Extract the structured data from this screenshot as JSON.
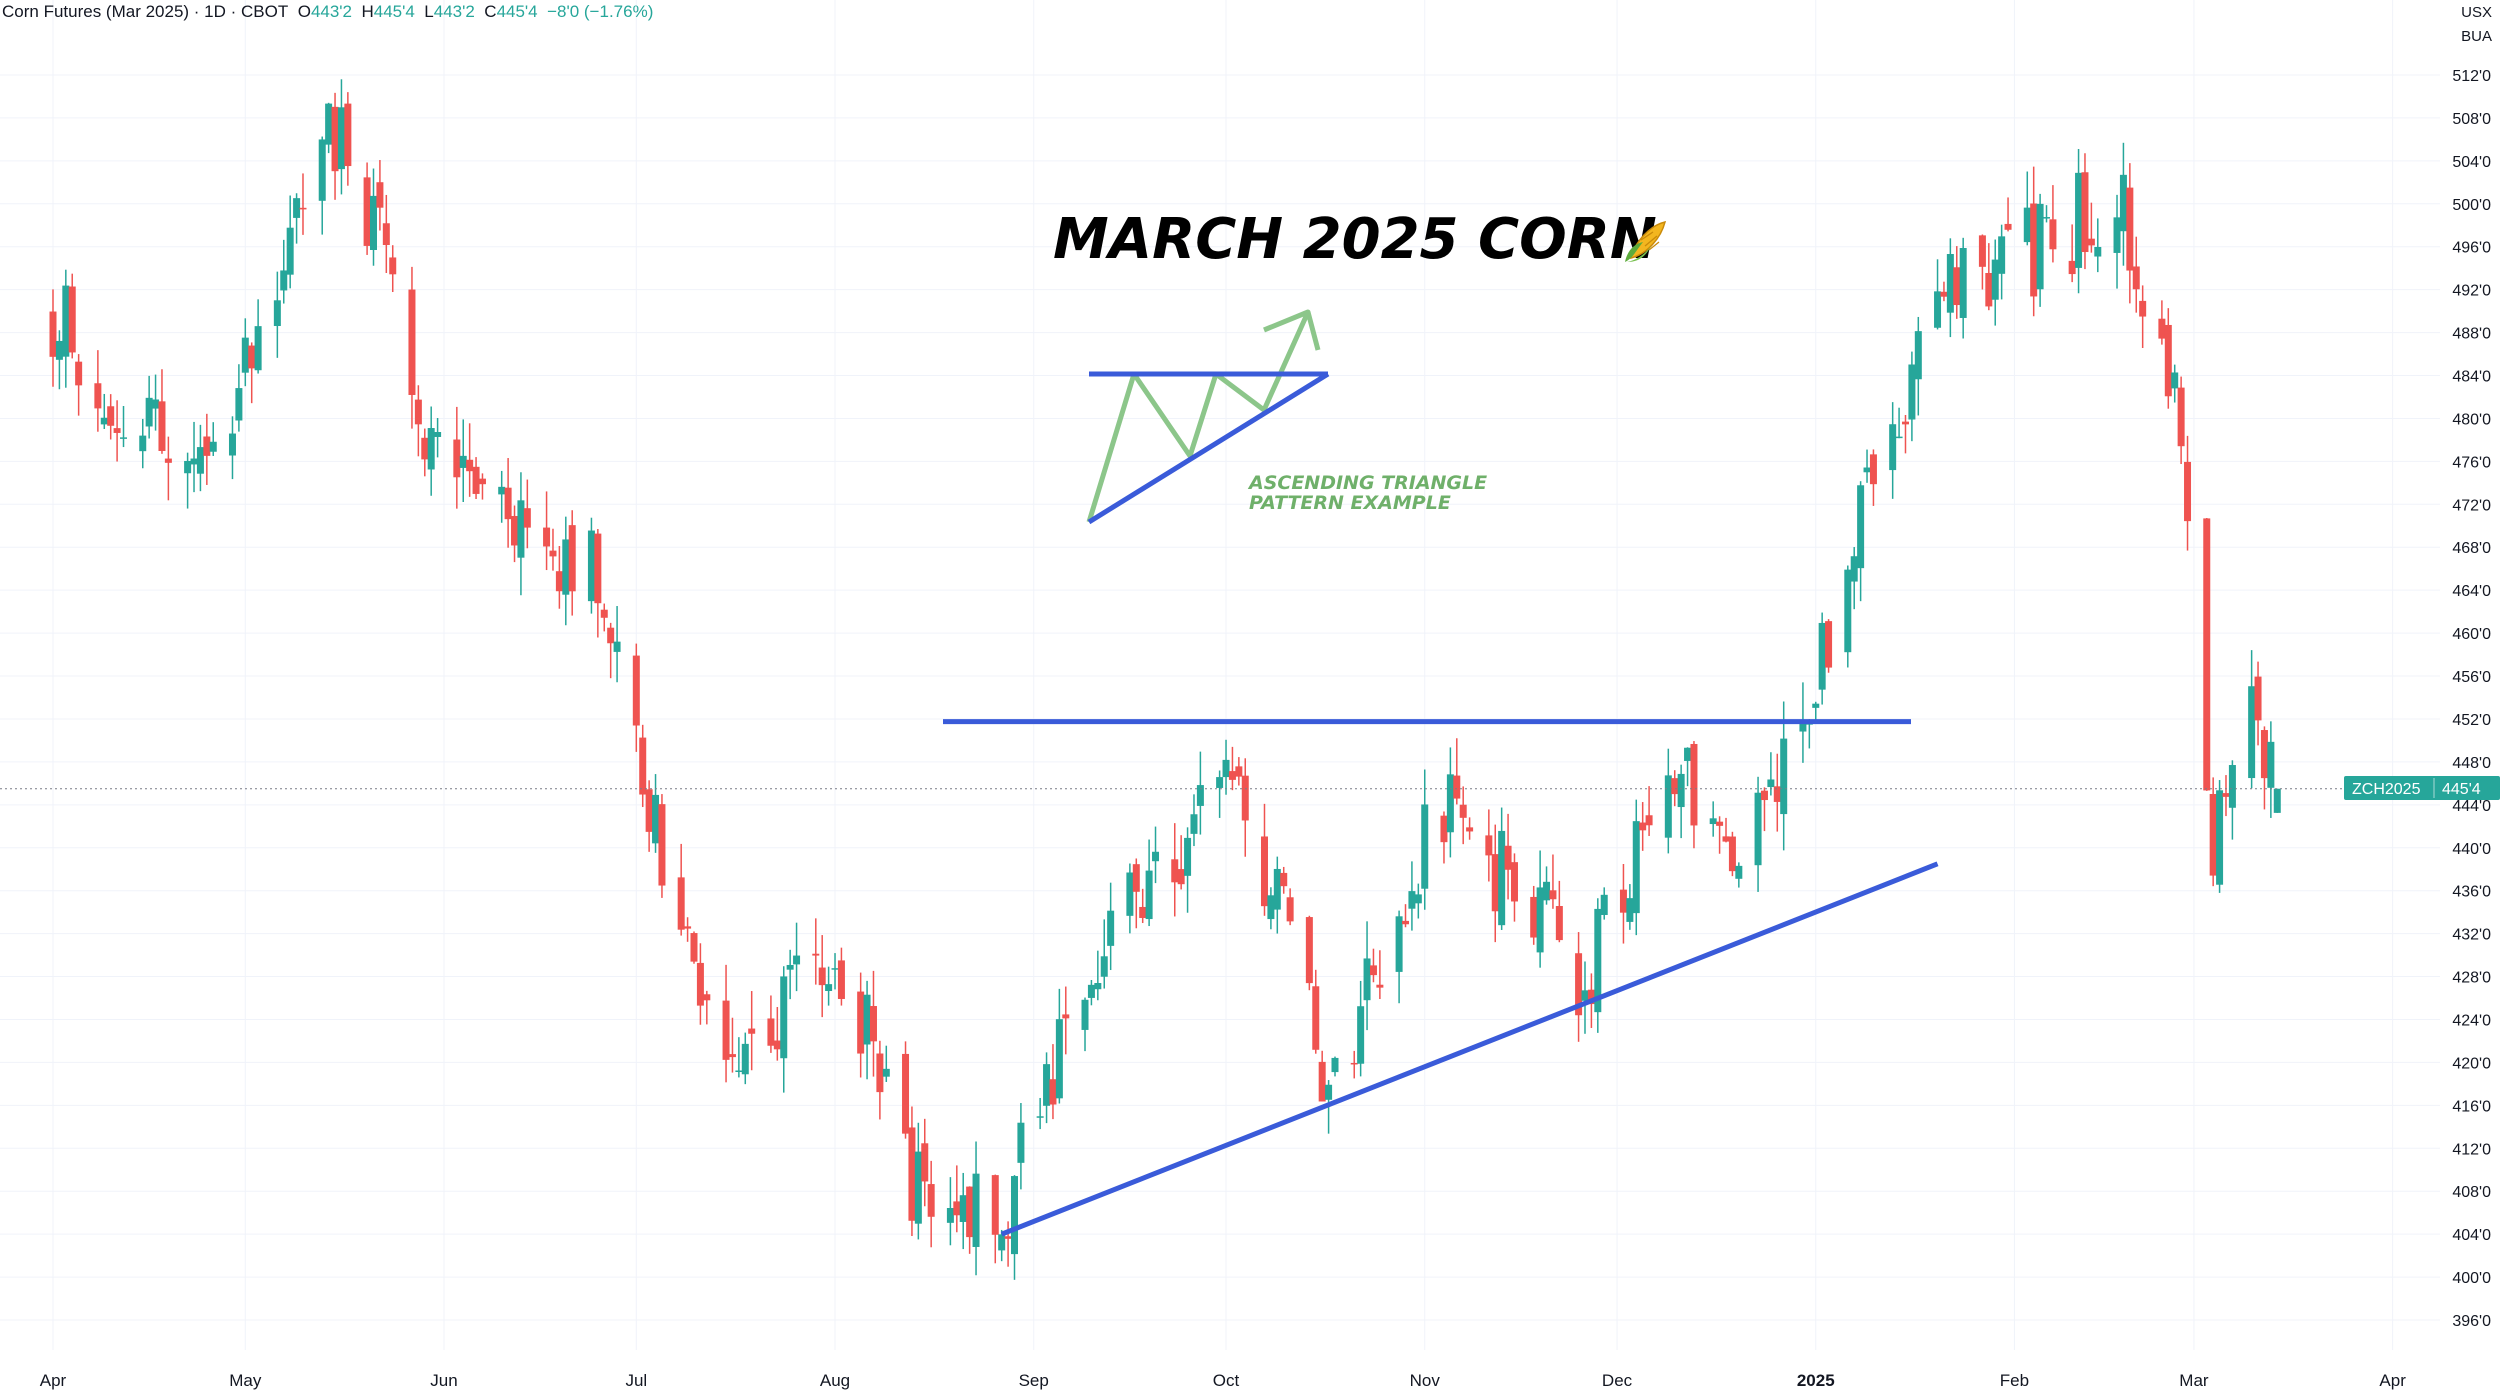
{
  "header": {
    "symbol_desc": "Corn Futures (Mar 2025) · 1D · CBOT",
    "o_label": "O",
    "o_value": "443'2",
    "h_label": "H",
    "h_value": "445'4",
    "l_label": "L",
    "l_value": "443'2",
    "c_label": "C",
    "c_value": "445'4",
    "change": "−8'0 (−1.76%)"
  },
  "currency": {
    "unit": "USX",
    "sub": "BUA"
  },
  "price_badge": {
    "symbol": "ZCH2025",
    "value": "445'4"
  },
  "annotations": {
    "title": "MARCH 2025 CORN",
    "title_icon": "corn-icon",
    "pattern_note_line1": "ASCENDING TRIANGLE",
    "pattern_note_line2": "PATTERN EXAMPLE"
  },
  "colors": {
    "up": "#26a69a",
    "down": "#ef5350",
    "trendline": "#3a5bd9",
    "pattern_arrow": "#8cc68a",
    "badge": "#26a69a"
  },
  "chart_data": {
    "type": "candlestick",
    "ylim": [
      394,
      514
    ],
    "y_ticks": [
      "396'0",
      "400'0",
      "404'0",
      "408'0",
      "412'0",
      "416'0",
      "420'0",
      "424'0",
      "428'0",
      "432'0",
      "436'0",
      "440'0",
      "444'0",
      "448'0",
      "452'0",
      "456'0",
      "460'0",
      "464'0",
      "468'0",
      "472'0",
      "476'0",
      "480'0",
      "484'0",
      "488'0",
      "492'0",
      "496'0",
      "500'0",
      "504'0",
      "508'0",
      "512'0"
    ],
    "x_labels": [
      "Apr",
      "May",
      "Jun",
      "Jul",
      "Aug",
      "Sep",
      "Oct",
      "Nov",
      "Dec",
      "2025",
      "Feb",
      "Mar",
      "Apr"
    ],
    "x_label_bold": "2025",
    "last_price": 445.5,
    "resistance": 451.75,
    "support": {
      "start": [
        "2024-08-27",
        404
      ],
      "end": [
        "2025-01-20",
        438.5
      ]
    },
    "key_points": [
      {
        "date": "2024-04-01",
        "price": 490
      },
      {
        "date": "2024-04-25",
        "price": 473
      },
      {
        "date": "2024-05-16",
        "price": 509
      },
      {
        "date": "2024-05-30",
        "price": 478
      },
      {
        "date": "2024-06-10",
        "price": 472
      },
      {
        "date": "2024-06-25",
        "price": 465
      },
      {
        "date": "2024-07-05",
        "price": 440
      },
      {
        "date": "2024-07-15",
        "price": 420
      },
      {
        "date": "2024-08-01",
        "price": 432
      },
      {
        "date": "2024-08-12",
        "price": 410
      },
      {
        "date": "2024-08-27",
        "price": 405
      },
      {
        "date": "2024-09-10",
        "price": 430
      },
      {
        "date": "2024-09-25",
        "price": 438
      },
      {
        "date": "2024-10-01",
        "price": 450
      },
      {
        "date": "2024-10-17",
        "price": 418
      },
      {
        "date": "2024-11-04",
        "price": 444
      },
      {
        "date": "2024-11-26",
        "price": 428
      },
      {
        "date": "2024-12-10",
        "price": 447
      },
      {
        "date": "2024-12-20",
        "price": 438
      },
      {
        "date": "2025-01-02",
        "price": 458
      },
      {
        "date": "2025-01-13",
        "price": 480
      },
      {
        "date": "2025-01-24",
        "price": 494
      },
      {
        "date": "2025-02-07",
        "price": 496
      },
      {
        "date": "2025-02-17",
        "price": 502
      },
      {
        "date": "2025-02-26",
        "price": 480
      },
      {
        "date": "2025-03-04",
        "price": 440
      },
      {
        "date": "2025-03-10",
        "price": 456
      },
      {
        "date": "2025-03-14",
        "price": 445.5
      }
    ]
  }
}
